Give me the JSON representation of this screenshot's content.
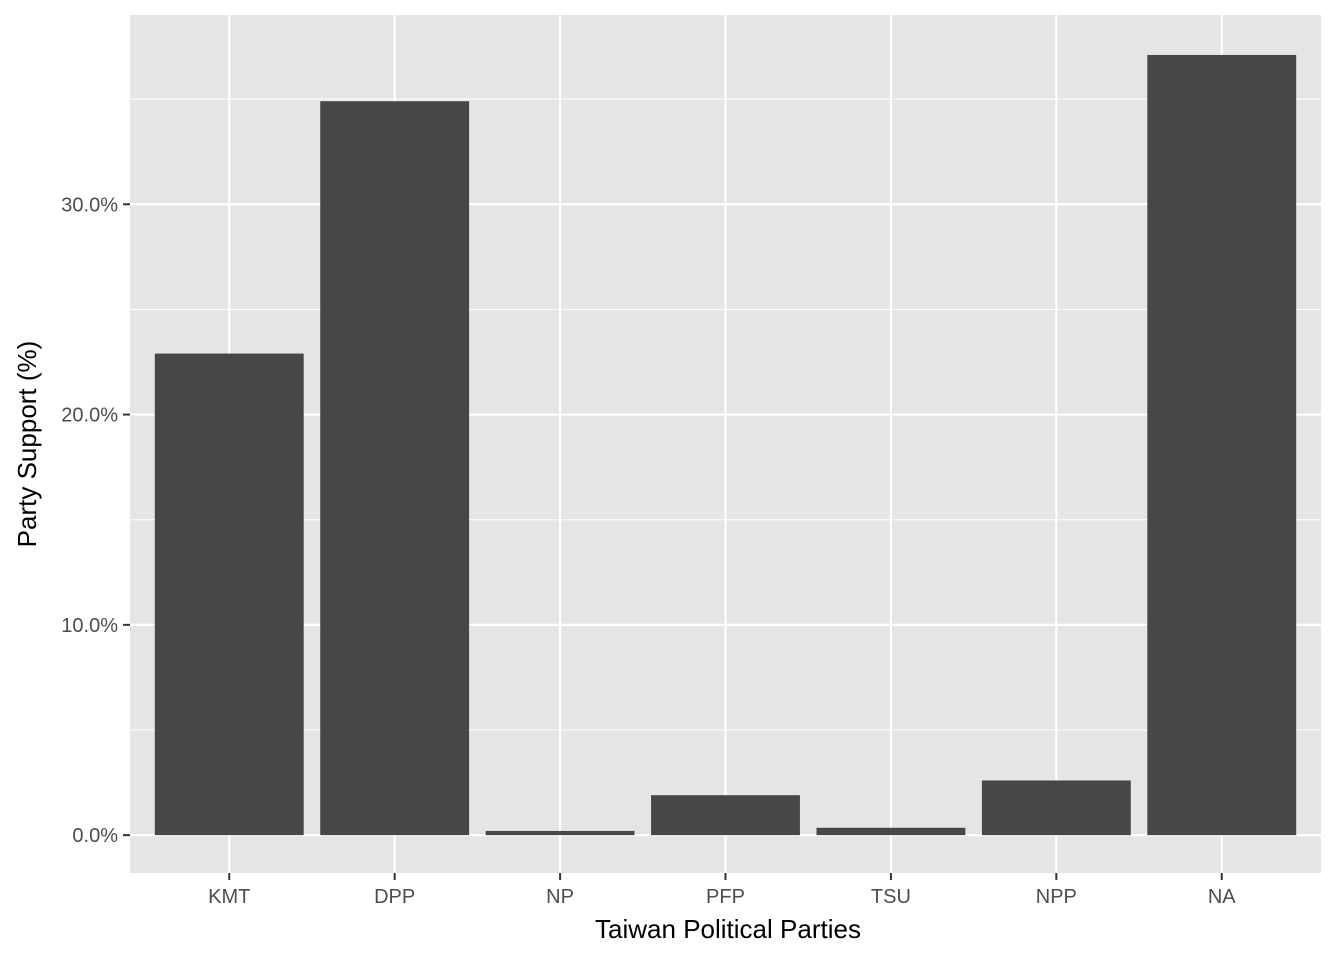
{
  "chart_data": {
    "type": "bar",
    "title": "",
    "xlabel": "Taiwan Political Parties",
    "ylabel": "Party Support (%)",
    "categories": [
      "KMT",
      "DPP",
      "NP",
      "PFP",
      "TSU",
      "NPP",
      "NA"
    ],
    "values": [
      22.9,
      34.9,
      0.2,
      1.9,
      0.35,
      2.6,
      37.1
    ],
    "ylim": [
      -1.8,
      39.0
    ],
    "yticks": [
      0,
      10,
      20,
      30
    ],
    "ytick_labels": [
      "0.0%",
      "10.0%",
      "20.0%",
      "30.0%"
    ],
    "grid": true,
    "legend": "none",
    "colors": {
      "panel": "#e5e5e5",
      "bar": "#474747",
      "grid": "#ffffff"
    }
  }
}
